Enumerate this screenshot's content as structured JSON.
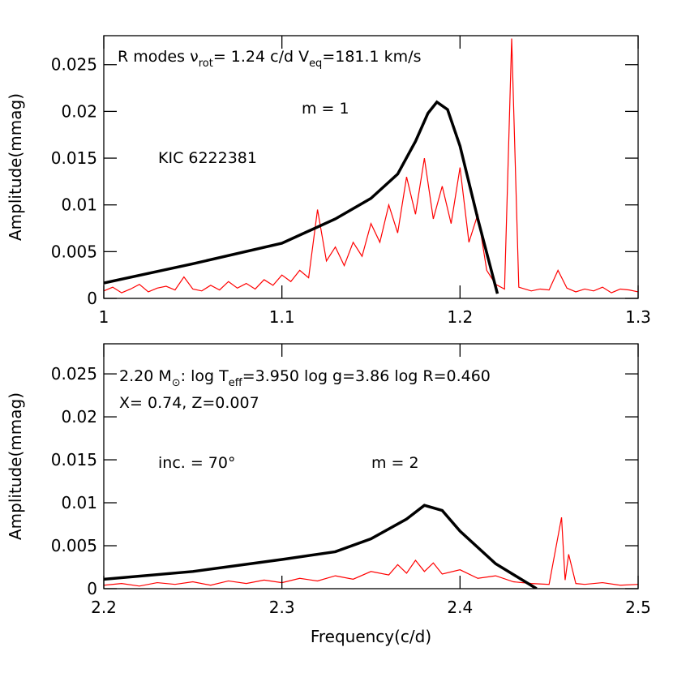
{
  "chart_data": [
    {
      "type": "line",
      "ylabel": "Amplitude(mmag)",
      "xlim": [
        1,
        1.3
      ],
      "xticks": [
        1,
        1.1,
        1.2,
        1.3
      ],
      "ylim": [
        0,
        0.0281
      ],
      "yticks": [
        0,
        0.005,
        0.01,
        0.015,
        0.02,
        0.025
      ],
      "annotations": [
        {
          "parts": [
            "R modes  ν",
            "rot",
            "= 1.24 c/d  V",
            "eq",
            "=181.1 km/s"
          ]
        },
        {
          "parts": [
            "m = 1"
          ]
        }
      ],
      "series": [
        {
          "name": "KIC 6222381",
          "color": "#ff0000",
          "x": [
            1.0,
            1.005,
            1.01,
            1.015,
            1.02,
            1.025,
            1.03,
            1.035,
            1.04,
            1.045,
            1.05,
            1.055,
            1.06,
            1.065,
            1.07,
            1.075,
            1.08,
            1.085,
            1.09,
            1.095,
            1.1,
            1.105,
            1.11,
            1.115,
            1.12,
            1.125,
            1.13,
            1.135,
            1.14,
            1.145,
            1.15,
            1.155,
            1.16,
            1.165,
            1.17,
            1.175,
            1.18,
            1.185,
            1.19,
            1.195,
            1.2,
            1.205,
            1.21,
            1.215,
            1.22,
            1.225,
            1.229,
            1.233,
            1.24,
            1.245,
            1.25,
            1.255,
            1.26,
            1.265,
            1.27,
            1.275,
            1.28,
            1.285,
            1.29,
            1.295,
            1.3
          ],
          "values": [
            0.0008,
            0.0012,
            0.0006,
            0.001,
            0.0015,
            0.0007,
            0.0011,
            0.0013,
            0.0009,
            0.0023,
            0.001,
            0.0008,
            0.0014,
            0.0009,
            0.0018,
            0.0011,
            0.0016,
            0.001,
            0.002,
            0.0014,
            0.0025,
            0.0018,
            0.003,
            0.0022,
            0.0095,
            0.004,
            0.0055,
            0.0035,
            0.006,
            0.0045,
            0.008,
            0.006,
            0.01,
            0.007,
            0.013,
            0.009,
            0.015,
            0.0085,
            0.012,
            0.008,
            0.014,
            0.006,
            0.009,
            0.003,
            0.0015,
            0.001,
            0.0278,
            0.0012,
            0.0008,
            0.001,
            0.0009,
            0.003,
            0.0011,
            0.0007,
            0.001,
            0.0008,
            0.0012,
            0.0006,
            0.001,
            0.0009,
            0.0007
          ]
        },
        {
          "color": "#000000",
          "x": [
            1.0,
            1.05,
            1.1,
            1.13,
            1.15,
            1.165,
            1.175,
            1.182,
            1.187,
            1.193,
            1.2,
            1.21,
            1.221
          ],
          "values": [
            0.00165,
            0.0037,
            0.0059,
            0.0085,
            0.0107,
            0.0133,
            0.0168,
            0.0198,
            0.021,
            0.0202,
            0.0163,
            0.0085,
            0.0005
          ]
        }
      ]
    },
    {
      "type": "line",
      "ylabel": "Amplitude(mmag)",
      "xlabel": "Frequency(c/d)",
      "xlim": [
        2.2,
        2.5
      ],
      "xticks": [
        2.2,
        2.3,
        2.4,
        2.5
      ],
      "ylim": [
        0,
        0.0285
      ],
      "yticks": [
        0,
        0.005,
        0.01,
        0.015,
        0.02,
        0.025
      ],
      "annotations": [
        {
          "parts": [
            "2.20 M",
            "⊙",
            ":  log T",
            "eff",
            "=3.950  log g=3.86  log R=0.460"
          ]
        },
        {
          "parts": [
            "X= 0.74, Z=0.007"
          ]
        },
        {
          "parts": [
            "inc. =  70°"
          ]
        },
        {
          "parts": [
            "m = 2"
          ]
        }
      ],
      "series": [
        {
          "color": "#ff0000",
          "x": [
            2.2,
            2.21,
            2.22,
            2.23,
            2.24,
            2.25,
            2.26,
            2.27,
            2.28,
            2.29,
            2.3,
            2.31,
            2.32,
            2.33,
            2.34,
            2.35,
            2.36,
            2.365,
            2.37,
            2.375,
            2.38,
            2.385,
            2.39,
            2.4,
            2.41,
            2.42,
            2.43,
            2.44,
            2.45,
            2.457,
            2.459,
            2.461,
            2.465,
            2.47,
            2.48,
            2.49,
            2.5
          ],
          "values": [
            0.0004,
            0.0006,
            0.0003,
            0.0007,
            0.0005,
            0.0008,
            0.0004,
            0.0009,
            0.0006,
            0.001,
            0.0007,
            0.0012,
            0.0009,
            0.0015,
            0.0011,
            0.002,
            0.0016,
            0.0028,
            0.0018,
            0.0033,
            0.002,
            0.003,
            0.0017,
            0.0022,
            0.0012,
            0.0015,
            0.0008,
            0.0006,
            0.0005,
            0.0083,
            0.001,
            0.004,
            0.0006,
            0.0005,
            0.0007,
            0.0004,
            0.0005
          ]
        },
        {
          "color": "#000000",
          "x": [
            2.2,
            2.25,
            2.3,
            2.33,
            2.35,
            2.37,
            2.38,
            2.39,
            2.4,
            2.42,
            2.443
          ],
          "values": [
            0.0011,
            0.002,
            0.0034,
            0.0043,
            0.0058,
            0.0081,
            0.0097,
            0.0091,
            0.0067,
            0.0029,
            0
          ]
        }
      ]
    }
  ]
}
